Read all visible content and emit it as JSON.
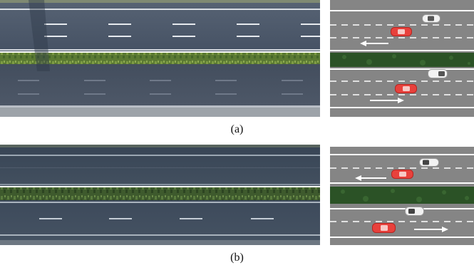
{
  "figure": {
    "panels": [
      {
        "id": "a",
        "caption": "(a)",
        "photo": {
          "description_icon": "aerial-road-photo"
        },
        "simulation": {
          "top_road": {
            "direction": "left",
            "cars": [
              "white-car",
              "red-car"
            ]
          },
          "bottom_road": {
            "direction": "right",
            "cars": [
              "white-car",
              "red-car"
            ]
          }
        }
      },
      {
        "id": "b",
        "caption": "(b)",
        "photo": {
          "description_icon": "aerial-road-photo"
        },
        "simulation": {
          "top_road": {
            "direction": "left",
            "cars": [
              "white-car",
              "red-car"
            ]
          },
          "bottom_road": {
            "direction": "right",
            "cars": [
              "white-car",
              "red-car"
            ]
          }
        }
      }
    ],
    "colors": {
      "asphalt_photo_a": "#4a5566",
      "asphalt_photo_b": "#3c4a5d",
      "sim_road": "#858585",
      "grass": "#2f5a2a",
      "red_car": "#e8413c",
      "white_car": "#f2f2f2"
    }
  }
}
